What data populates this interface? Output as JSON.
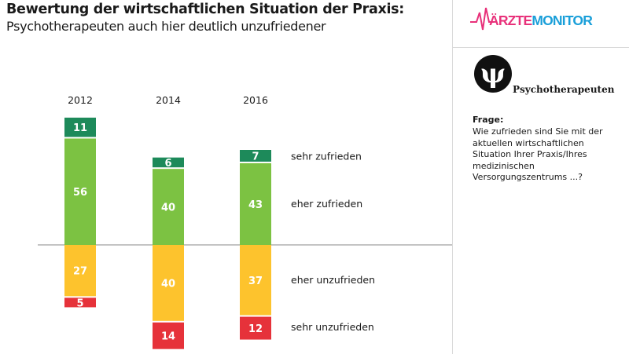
{
  "header": {
    "title": "Bewertung der wirtschaftlichen Situation der Praxis:",
    "subtitle": "Psychotherapeuten auch hier deutlich unzufriedener"
  },
  "logo": {
    "part1": "ÄRZTE",
    "part2": "MONITOR"
  },
  "sidebar": {
    "badge_symbol": "ψ",
    "badge_label": "Psychotherapeuten",
    "question_label": "Frage:",
    "question_text": "Wie zufrieden sind Sie mit der aktuellen wirtschaftlichen Situation Ihrer Praxis/Ihres medizinischen Versorgungszentrums ...?"
  },
  "colors": {
    "sehr_zufrieden": "#1d8a5a",
    "eher_zufrieden": "#7cc242",
    "eher_unzufrieden": "#fdc32d",
    "sehr_unzufrieden": "#e6323a",
    "axis": "#888888",
    "logo_pink": "#e8317a",
    "logo_blue": "#1a9fd9"
  },
  "chart_data": {
    "type": "bar",
    "subtype": "diverging-stacked",
    "categories": [
      "2012",
      "2014",
      "2016"
    ],
    "series": [
      {
        "name": "sehr zufrieden",
        "values": [
          11,
          6,
          7
        ],
        "direction": "positive"
      },
      {
        "name": "eher zufrieden",
        "values": [
          56,
          40,
          43
        ],
        "direction": "positive"
      },
      {
        "name": "eher unzufrieden",
        "values": [
          27,
          40,
          37
        ],
        "direction": "negative"
      },
      {
        "name": "sehr unzufrieden",
        "values": [
          5,
          14,
          12
        ],
        "direction": "negative"
      }
    ],
    "legend_position": "right, aligned with segments",
    "grid": false
  }
}
